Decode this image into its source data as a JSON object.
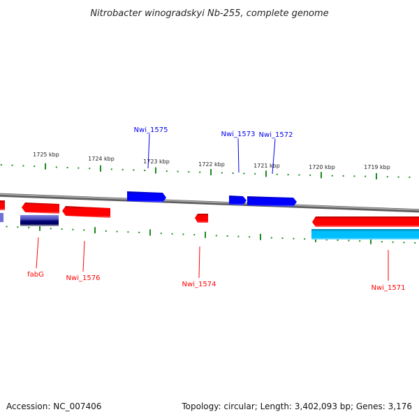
{
  "title": "Nitrobacter winogradskyi Nb-255, complete genome",
  "tick_labels": [
    "1725 kbp",
    "1724 kbp",
    "1723 kbp",
    "1722 kbp",
    "1721 kbp",
    "1720 kbp",
    "1719 kbp"
  ],
  "gene_labels": {
    "nwi_1575": "Nwi_1575",
    "nwi_1573": "Nwi_1573",
    "nwi_1572": "Nwi_1572",
    "fabg": "fabG",
    "nwi_1576": "Nwi_1576",
    "nwi_1574": "Nwi_1574",
    "nwi_1571": "Nwi_1571"
  },
  "colors": {
    "forward": "#0000ee",
    "reverse": "#ff0000",
    "rna": "#00bfff",
    "ticks": "#1a8a1a",
    "backbone": "#808080"
  },
  "footer": {
    "accession": "Accession: NC_007406",
    "summary": "Topology: circular; Length: 3,402,093 bp; Genes: 3,176"
  }
}
